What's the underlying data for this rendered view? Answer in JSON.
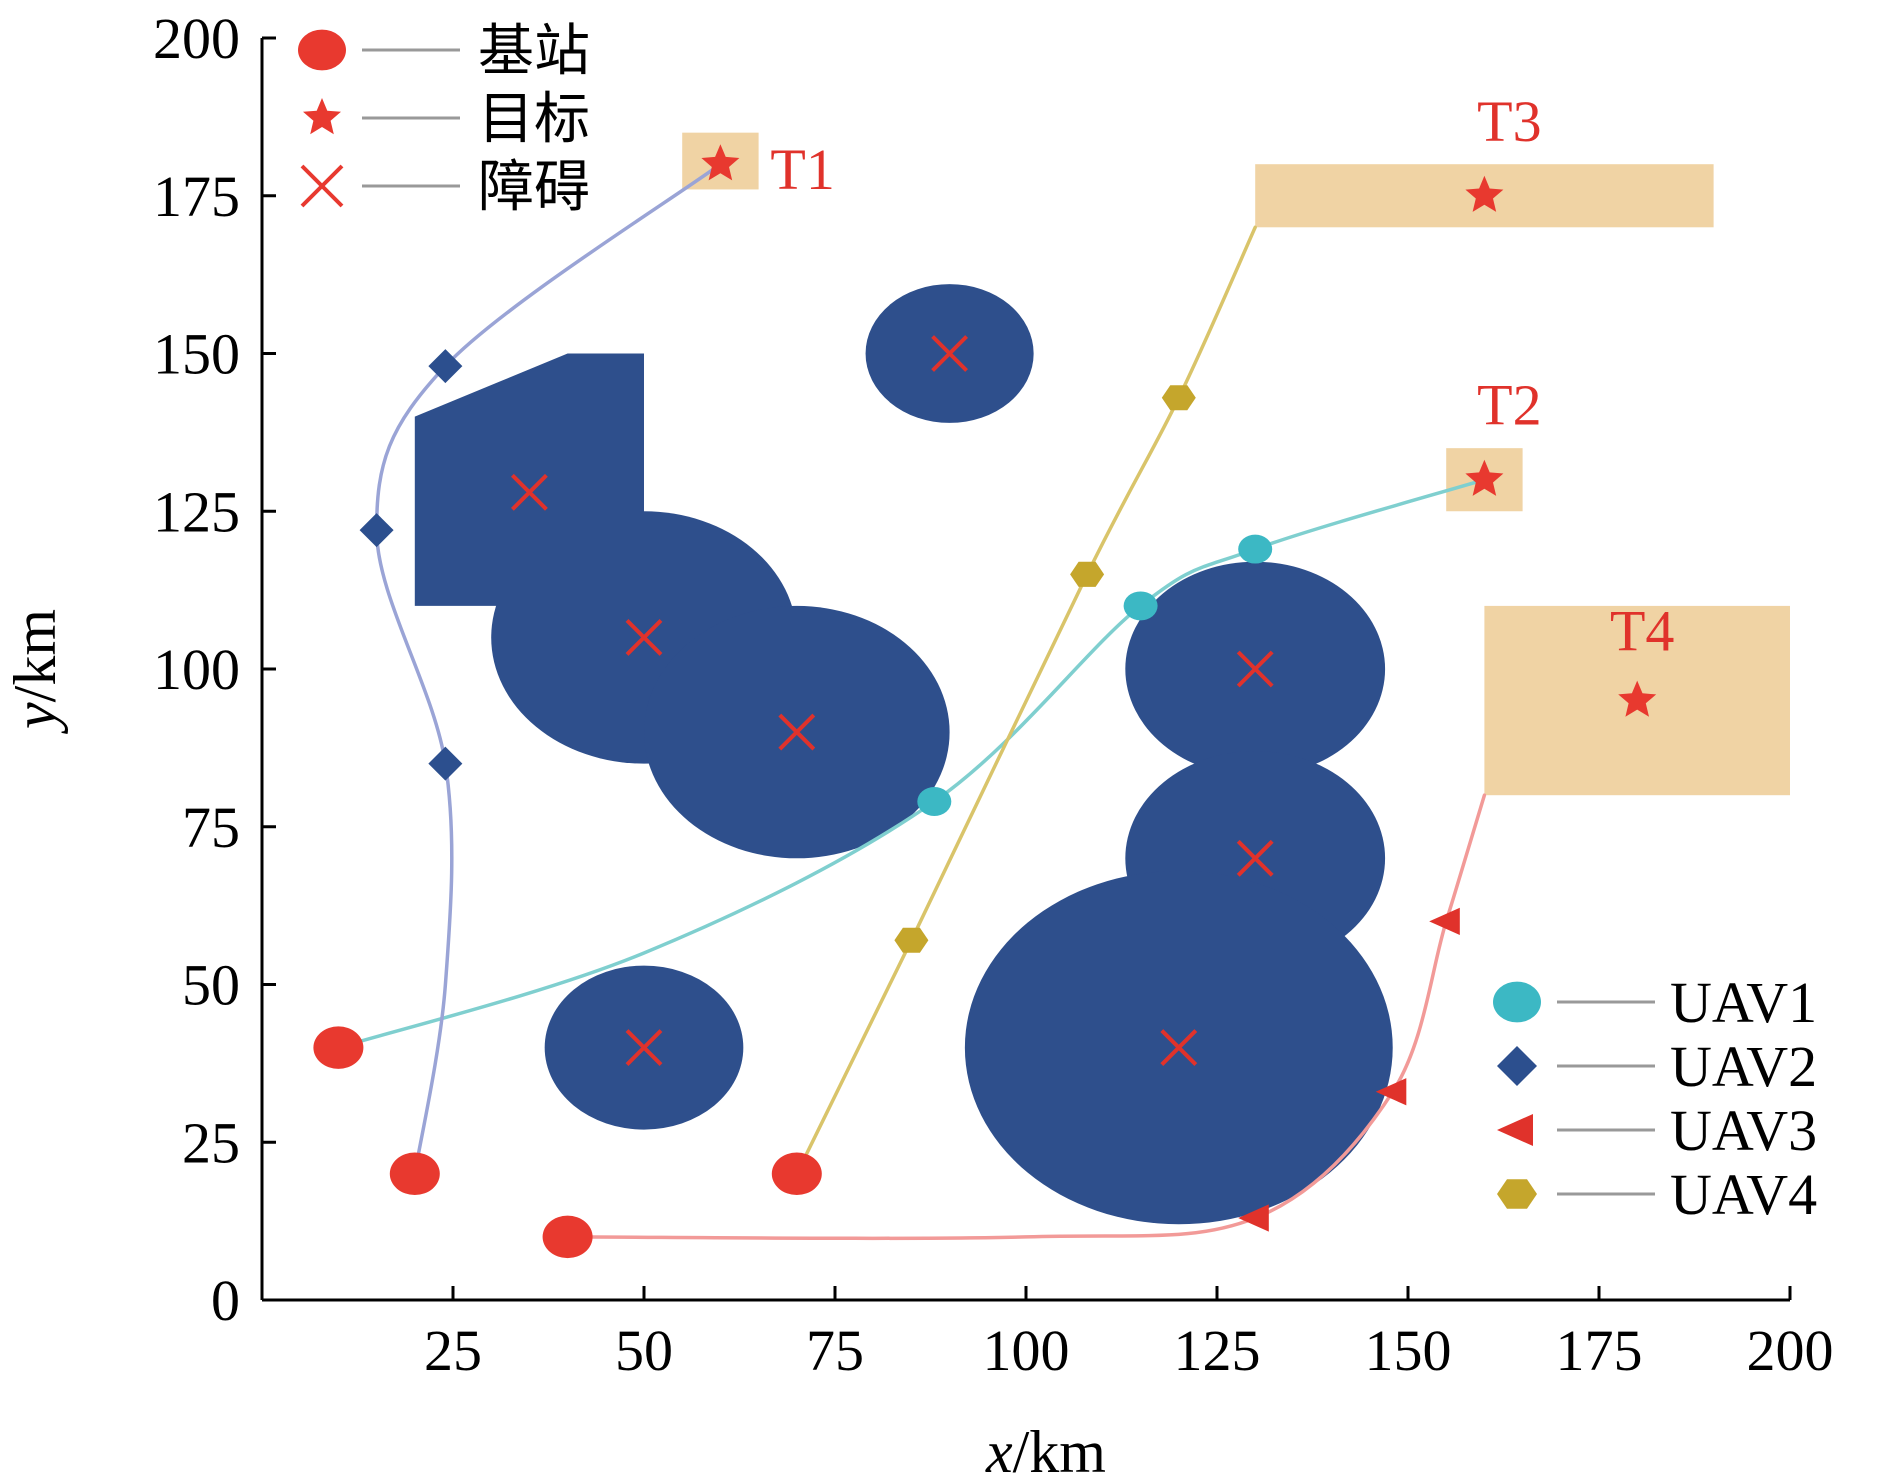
{
  "chart_data": {
    "type": "scatter",
    "xlabel_var": "x",
    "xlabel_unit": "/km",
    "ylabel_var": "y",
    "ylabel_unit": "/km",
    "xlim": [
      0,
      200
    ],
    "ylim": [
      0,
      200
    ],
    "x_ticks": [
      25,
      50,
      75,
      100,
      125,
      150,
      175,
      200
    ],
    "y_ticks": [
      0,
      25,
      50,
      75,
      100,
      125,
      150,
      175,
      200
    ],
    "legend_top_left": [
      {
        "symbol": "circle",
        "label": "基站"
      },
      {
        "symbol": "star",
        "label": "目标"
      },
      {
        "symbol": "cross",
        "label": "障碍"
      }
    ],
    "legend_bottom_right": [
      {
        "symbol": "circle",
        "label": "UAV1"
      },
      {
        "symbol": "diamond",
        "label": "UAV2"
      },
      {
        "symbol": "triangle-left",
        "label": "UAV3"
      },
      {
        "symbol": "hexagon",
        "label": "UAV4"
      }
    ],
    "base_stations": [
      [
        10,
        40
      ],
      [
        20,
        20
      ],
      [
        70,
        20
      ],
      [
        40,
        10
      ]
    ],
    "targets": [
      {
        "label": "T1",
        "point": [
          60,
          180
        ],
        "area": [
          [
            55,
            176
          ],
          [
            65,
            185
          ]
        ]
      },
      {
        "label": "T2",
        "point": [
          160,
          130
        ],
        "area": [
          [
            155,
            125
          ],
          [
            165,
            135
          ]
        ]
      },
      {
        "label": "T3",
        "point": [
          160,
          175
        ],
        "area": [
          [
            130,
            170
          ],
          [
            190,
            180
          ]
        ]
      },
      {
        "label": "T4",
        "point": [
          180,
          95
        ],
        "area": [
          [
            160,
            80
          ],
          [
            200,
            110
          ]
        ]
      }
    ],
    "obstacles": {
      "circles": [
        {
          "center": [
            90,
            150
          ],
          "r": 11
        },
        {
          "center": [
            50,
            105
          ],
          "r": 20
        },
        {
          "center": [
            70,
            90
          ],
          "r": 20
        },
        {
          "center": [
            130,
            100
          ],
          "r": 17
        },
        {
          "center": [
            130,
            70
          ],
          "r": 17
        },
        {
          "center": [
            120,
            40
          ],
          "r": 28
        },
        {
          "center": [
            50,
            40
          ],
          "r": 13
        }
      ],
      "polygons": [
        [
          [
            20,
            110
          ],
          [
            20,
            140
          ],
          [
            40,
            150
          ],
          [
            50,
            150
          ],
          [
            50,
            110
          ]
        ]
      ],
      "markers": [
        [
          90,
          150
        ],
        [
          35,
          128
        ],
        [
          50,
          105
        ],
        [
          70,
          90
        ],
        [
          130,
          100
        ],
        [
          130,
          70
        ],
        [
          120,
          40
        ],
        [
          50,
          40
        ]
      ]
    },
    "uav_paths": [
      {
        "name": "UAV1",
        "color": "#7fcfcf",
        "marker": "circle",
        "marker_color": "#3cb8c4",
        "path": [
          [
            10,
            40
          ],
          [
            50,
            55
          ],
          [
            88,
            79
          ],
          [
            115,
            110
          ],
          [
            130,
            119
          ],
          [
            160,
            130
          ]
        ],
        "markers": [
          [
            88,
            79
          ],
          [
            115,
            110
          ],
          [
            130,
            119
          ]
        ]
      },
      {
        "name": "UAV2",
        "color": "#9aa4d6",
        "marker": "diamond",
        "marker_color": "#2c4f8e",
        "path": [
          [
            20,
            20
          ],
          [
            24,
            50
          ],
          [
            24,
            85
          ],
          [
            15,
            122
          ],
          [
            24,
            148
          ],
          [
            60,
            180
          ]
        ],
        "markers": [
          [
            24,
            85
          ],
          [
            15,
            122
          ],
          [
            24,
            148
          ]
        ]
      },
      {
        "name": "UAV3",
        "color": "#f29a98",
        "marker": "triangle-left",
        "marker_color": "#e0322b",
        "path": [
          [
            40,
            10
          ],
          [
            100,
            10
          ],
          [
            130,
            13
          ],
          [
            148,
            33
          ],
          [
            155,
            60
          ],
          [
            160,
            80
          ]
        ],
        "markers": [
          [
            130,
            13
          ],
          [
            148,
            33
          ],
          [
            155,
            60
          ]
        ]
      },
      {
        "name": "UAV4",
        "color": "#d9c46a",
        "marker": "hexagon",
        "marker_color": "#c5a62c",
        "path": [
          [
            70,
            20
          ],
          [
            85,
            57
          ],
          [
            108,
            115
          ],
          [
            120,
            143
          ],
          [
            130,
            170
          ]
        ],
        "markers": [
          [
            85,
            57
          ],
          [
            108,
            115
          ],
          [
            120,
            143
          ]
        ]
      }
    ],
    "colors": {
      "obstacle": "#2e4f8c",
      "target_area": "#f0d3a4",
      "base_station": "#e8392f",
      "target_star": "#e8392f",
      "obstacle_cross": "#e0322b"
    }
  }
}
